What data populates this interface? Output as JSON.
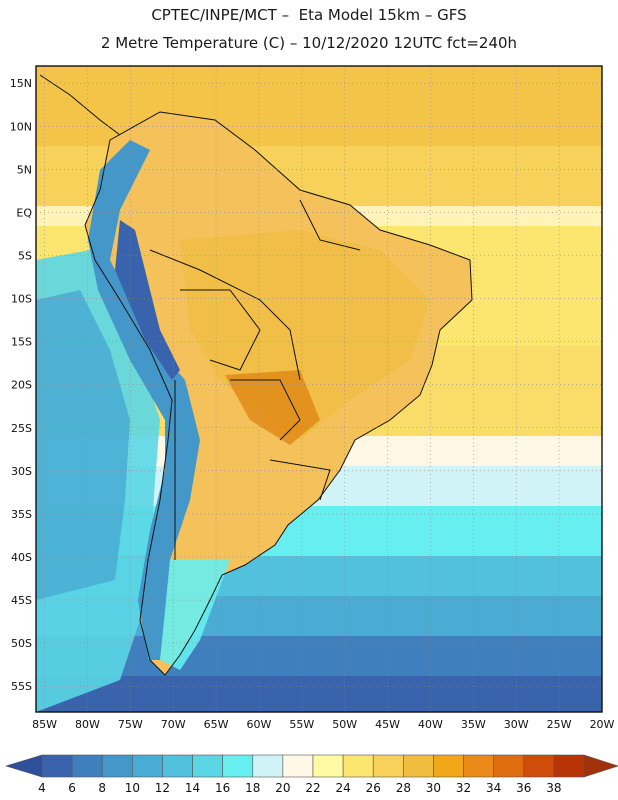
{
  "header": {
    "line1": "CPTEC/INPE/MCT –  Eta Model 15km – GFS",
    "line2": "2 Metre Temperature (C) – 10/12/2020 12UTC fct=240h"
  },
  "map": {
    "lat_labels": [
      "15N",
      "10N",
      "5N",
      "EQ",
      "5S",
      "10S",
      "15S",
      "20S",
      "25S",
      "30S",
      "35S",
      "40S",
      "45S",
      "50S",
      "55S"
    ],
    "lat_values": [
      15,
      10,
      5,
      0,
      -5,
      -10,
      -15,
      -20,
      -25,
      -30,
      -35,
      -40,
      -45,
      -50,
      -55
    ],
    "lon_labels": [
      "85W",
      "80W",
      "75W",
      "70W",
      "65W",
      "60W",
      "55W",
      "50W",
      "45W",
      "40W",
      "35W",
      "30W",
      "25W",
      "20W"
    ],
    "lon_values": [
      -85,
      -80,
      -75,
      -70,
      -65,
      -60,
      -55,
      -50,
      -45,
      -40,
      -35,
      -30,
      -25,
      -20
    ],
    "lon_range": [
      -86,
      -20
    ],
    "lat_range": [
      -58,
      17
    ],
    "grid": true
  },
  "colorbar": {
    "labels": [
      "4",
      "6",
      "8",
      "10",
      "12",
      "14",
      "16",
      "18",
      "20",
      "22",
      "24",
      "26",
      "28",
      "30",
      "32",
      "34",
      "36",
      "38"
    ],
    "colors": [
      "#3a63ad",
      "#3f7fbd",
      "#4497c9",
      "#4aabd4",
      "#52c1dd",
      "#5ad6e5",
      "#66eef0",
      "#cff3f6",
      "#fff8e6",
      "#fffaa3",
      "#fde66f",
      "#f7d15a",
      "#f0bd3e",
      "#f0a818",
      "#ea8a18",
      "#e06c10",
      "#cf4c0a",
      "#b83306"
    ],
    "low_color": "#2f4f9a",
    "high_color": "#a2300a"
  }
}
